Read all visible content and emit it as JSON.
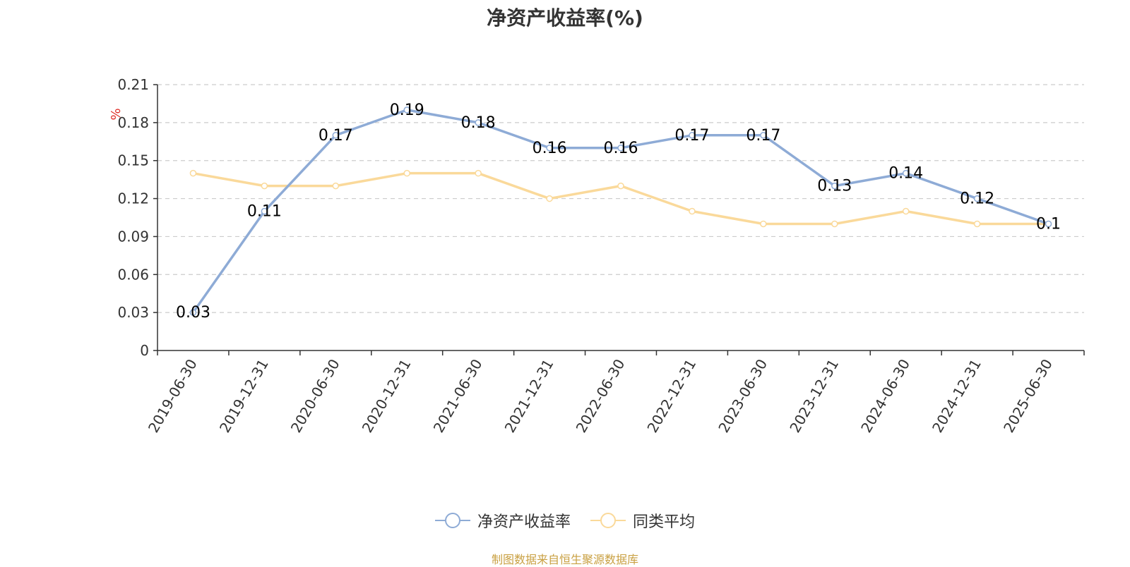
{
  "chart_data": {
    "type": "line",
    "title": "净资产收益率(%)",
    "ylabel": "%",
    "categories": [
      "2019-06-30",
      "2019-12-31",
      "2020-06-30",
      "2020-12-31",
      "2021-06-30",
      "2021-12-31",
      "2022-06-30",
      "2022-12-31",
      "2023-06-30",
      "2023-12-31",
      "2024-06-30",
      "2024-12-31",
      "2025-06-30"
    ],
    "yticks": [
      "0",
      "0.03",
      "0.06",
      "0.09",
      "0.12",
      "0.15",
      "0.18",
      "0.21"
    ],
    "ylim": [
      0,
      0.21
    ],
    "grid": true,
    "legend_position": "bottom",
    "series": [
      {
        "name": "净资产收益率",
        "color": "#8eabd6",
        "values": [
          0.03,
          0.11,
          0.17,
          0.19,
          0.18,
          0.16,
          0.16,
          0.17,
          0.17,
          0.13,
          0.14,
          0.12,
          0.1
        ],
        "labels": [
          "0.03",
          "0.11",
          "0.17",
          "0.19",
          "0.18",
          "0.16",
          "0.16",
          "0.17",
          "0.17",
          "0.13",
          "0.14",
          "0.12",
          "0.1"
        ]
      },
      {
        "name": "同类平均",
        "color": "#fad99a",
        "values": [
          0.14,
          0.13,
          0.13,
          0.14,
          0.14,
          0.12,
          0.13,
          0.11,
          0.1,
          0.1,
          0.11,
          0.1,
          0.1
        ]
      }
    ]
  },
  "source_text": "制图数据来自恒生聚源数据库",
  "source_color": "#c9a042",
  "ylabel_color": "#e0302a"
}
